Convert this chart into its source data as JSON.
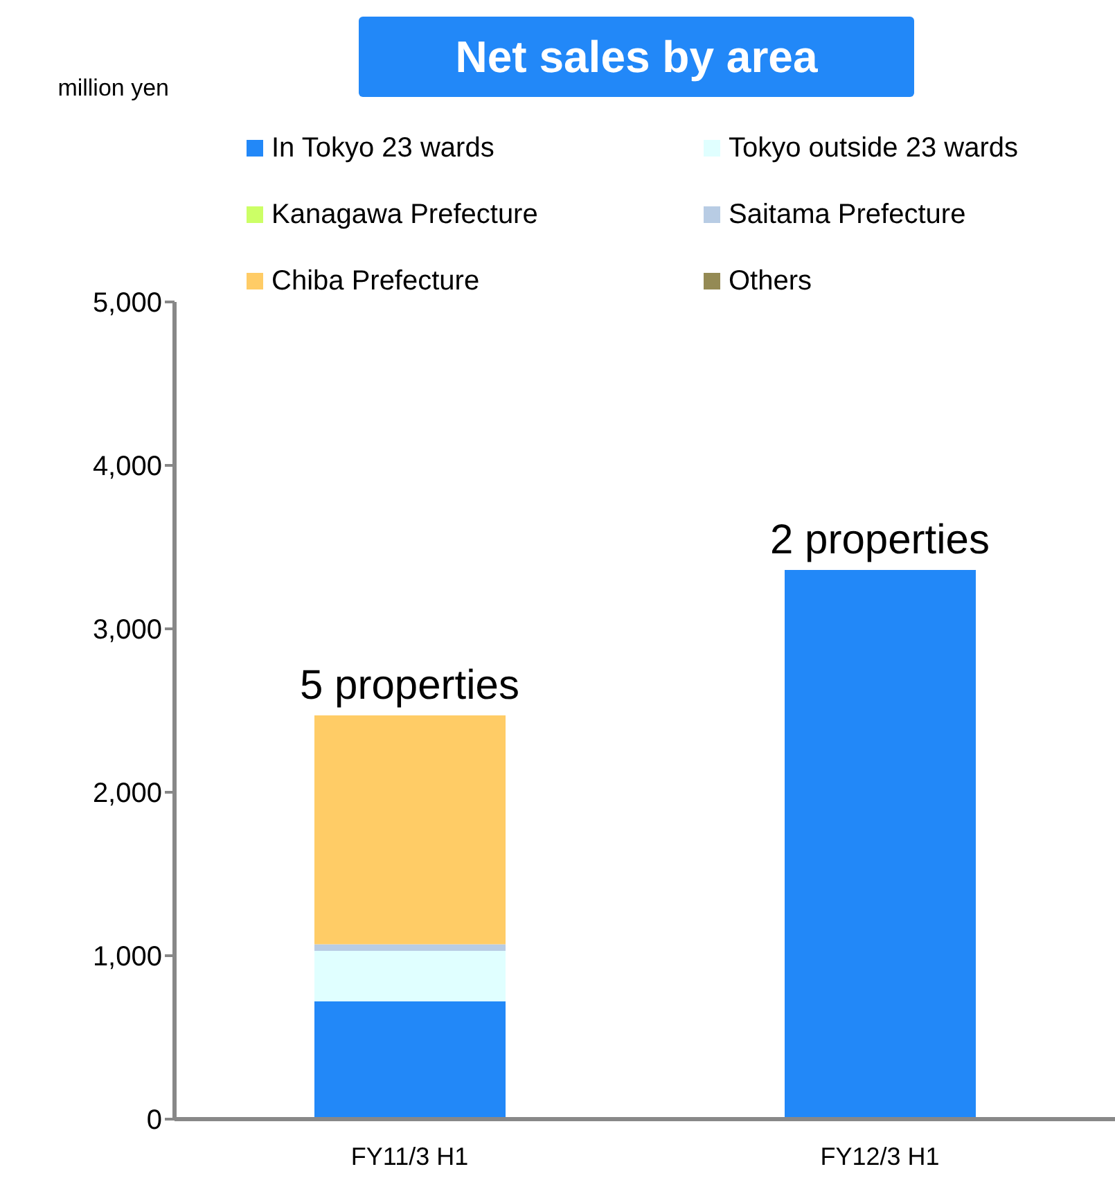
{
  "chart_data": {
    "type": "bar",
    "title": "Net sales by area",
    "categories": [
      "FY11/3 H1",
      "FY12/3 H1"
    ],
    "stacked": true,
    "series": [
      {
        "name": "In Tokyo 23 wards",
        "color": "#2288f8",
        "values": [
          720,
          3360
        ]
      },
      {
        "name": "Tokyo outside 23 wards",
        "color": "#e0ffff",
        "values": [
          310,
          0
        ]
      },
      {
        "name": "Kanagawa Prefecture",
        "color": "#ccff66",
        "values": [
          0,
          0
        ]
      },
      {
        "name": "Saitama Prefecture",
        "color": "#b8cce4",
        "values": [
          40,
          0
        ]
      },
      {
        "name": "Chiba Prefecture",
        "color": "#ffcc66",
        "values": [
          1400,
          0
        ]
      },
      {
        "name": "Others",
        "color": "#948a54",
        "values": [
          0,
          0
        ]
      }
    ],
    "ylim": [
      0,
      5000
    ],
    "yticks": [
      0,
      {
        "value": 1000,
        "label": "1,000"
      },
      {
        "value": 2000,
        "label": "2,000"
      },
      {
        "value": 3000,
        "label": "3,000"
      },
      {
        "value": 4000,
        "label": "4,000"
      },
      {
        "value": 5000,
        "label": "5,000"
      }
    ],
    "grid": false,
    "legend": "top",
    "annotations": [
      "million yen",
      {
        "text": "5 properties",
        "x": "FY11/3 H1",
        "y": 2470
      },
      {
        "text": "2 properties",
        "x": "FY12/3 H1",
        "y": 3360
      }
    ]
  }
}
